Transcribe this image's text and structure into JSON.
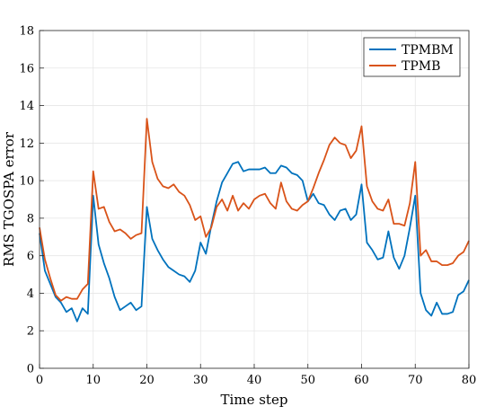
{
  "chart_data": {
    "type": "line",
    "xlabel": "Time step",
    "ylabel": "RMS TGOSPA error",
    "xlim": [
      0,
      80
    ],
    "ylim": [
      0,
      18
    ],
    "xticks": [
      0,
      10,
      20,
      30,
      40,
      50,
      60,
      70,
      80
    ],
    "yticks": [
      0,
      2,
      4,
      6,
      8,
      10,
      12,
      14,
      16,
      18
    ],
    "grid": true,
    "legend_position": "top-right",
    "x": [
      0,
      1,
      2,
      3,
      4,
      5,
      6,
      7,
      8,
      9,
      10,
      11,
      12,
      13,
      14,
      15,
      16,
      17,
      18,
      19,
      20,
      21,
      22,
      23,
      24,
      25,
      26,
      27,
      28,
      29,
      30,
      31,
      32,
      33,
      34,
      35,
      36,
      37,
      38,
      39,
      40,
      41,
      42,
      43,
      44,
      45,
      46,
      47,
      48,
      49,
      50,
      51,
      52,
      53,
      54,
      55,
      56,
      57,
      58,
      59,
      60,
      61,
      62,
      63,
      64,
      65,
      66,
      67,
      68,
      69,
      70,
      71,
      72,
      73,
      74,
      75,
      76,
      77,
      78,
      79,
      80
    ],
    "series": [
      {
        "name": "TPMBM",
        "color": "#0072BD",
        "values": [
          7.2,
          5.2,
          4.5,
          3.8,
          3.5,
          3.0,
          3.2,
          2.5,
          3.2,
          2.9,
          9.2,
          6.6,
          5.6,
          4.8,
          3.8,
          3.1,
          3.3,
          3.5,
          3.1,
          3.3,
          8.6,
          6.9,
          6.3,
          5.8,
          5.4,
          5.2,
          5.0,
          4.9,
          4.6,
          5.2,
          6.7,
          6.1,
          7.6,
          8.9,
          9.9,
          10.4,
          10.9,
          11.0,
          10.5,
          10.6,
          10.6,
          10.6,
          10.7,
          10.4,
          10.4,
          10.8,
          10.7,
          10.4,
          10.3,
          10.0,
          8.9,
          9.3,
          8.8,
          8.7,
          8.2,
          7.9,
          8.4,
          8.5,
          7.9,
          8.2,
          9.8,
          6.7,
          6.3,
          5.8,
          5.9,
          7.3,
          5.9,
          5.3,
          6.0,
          7.5,
          9.2,
          4.0,
          3.1,
          2.8,
          3.5,
          2.9,
          2.9,
          3.0,
          3.9,
          4.1,
          4.7
        ]
      },
      {
        "name": "TPMB",
        "color": "#D95319",
        "values": [
          7.5,
          5.8,
          4.8,
          3.9,
          3.6,
          3.8,
          3.7,
          3.7,
          4.2,
          4.5,
          10.5,
          8.5,
          8.6,
          7.8,
          7.3,
          7.4,
          7.2,
          6.9,
          7.1,
          7.2,
          13.3,
          11.0,
          10.1,
          9.7,
          9.6,
          9.8,
          9.4,
          9.2,
          8.7,
          7.9,
          8.1,
          7.0,
          7.5,
          8.6,
          9.0,
          8.4,
          9.2,
          8.4,
          8.8,
          8.5,
          9.0,
          9.2,
          9.3,
          8.8,
          8.5,
          9.9,
          8.9,
          8.5,
          8.4,
          8.7,
          8.9,
          9.6,
          10.4,
          11.1,
          11.9,
          12.3,
          12.0,
          11.9,
          11.2,
          11.6,
          12.9,
          9.7,
          8.9,
          8.5,
          8.4,
          9.0,
          7.7,
          7.7,
          7.6,
          8.8,
          11.0,
          6.0,
          6.3,
          5.7,
          5.7,
          5.5,
          5.5,
          5.6,
          6.0,
          6.2,
          6.8
        ]
      }
    ]
  }
}
